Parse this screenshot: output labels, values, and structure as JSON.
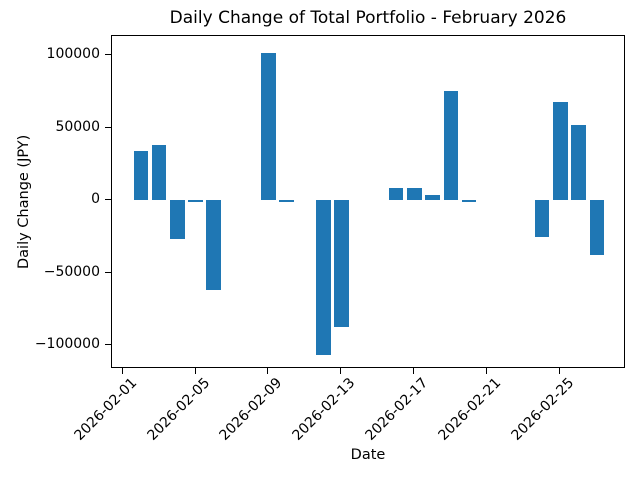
{
  "chart_data": {
    "type": "bar",
    "title": "Daily Change of Total Portfolio - February 2026",
    "xlabel": "Date",
    "ylabel": "Daily Change (JPY)",
    "bar_color": "#1f77b4",
    "background_color": "#ffffff",
    "grid": false,
    "x": [
      "2026-02-02",
      "2026-02-03",
      "2026-02-04",
      "2026-02-05",
      "2026-02-06",
      "2026-02-09",
      "2026-02-10",
      "2026-02-12",
      "2026-02-13",
      "2026-02-16",
      "2026-02-17",
      "2026-02-18",
      "2026-02-19",
      "2026-02-20",
      "2026-02-24",
      "2026-02-25",
      "2026-02-26",
      "2026-02-27"
    ],
    "values": [
      34000,
      38000,
      -27000,
      -1200,
      -62000,
      101800,
      -1500,
      -106500,
      -87500,
      8300,
      8300,
      4000,
      75300,
      -1400,
      -25200,
      68000,
      51700,
      -38000
    ],
    "x_tick_labels": [
      "2026-02-01",
      "2026-02-05",
      "2026-02-09",
      "2026-02-13",
      "2026-02-17",
      "2026-02-21",
      "2026-02-25"
    ],
    "y_tick_values": [
      100000,
      50000,
      0,
      -50000,
      -100000
    ],
    "y_tick_labels": [
      "100000",
      "50000",
      "0",
      "−50000",
      "−100000"
    ],
    "ylim": [
      -116300,
      113300
    ],
    "xlim_days": [
      0.42,
      28.6
    ],
    "bar_width_days": 0.8
  }
}
